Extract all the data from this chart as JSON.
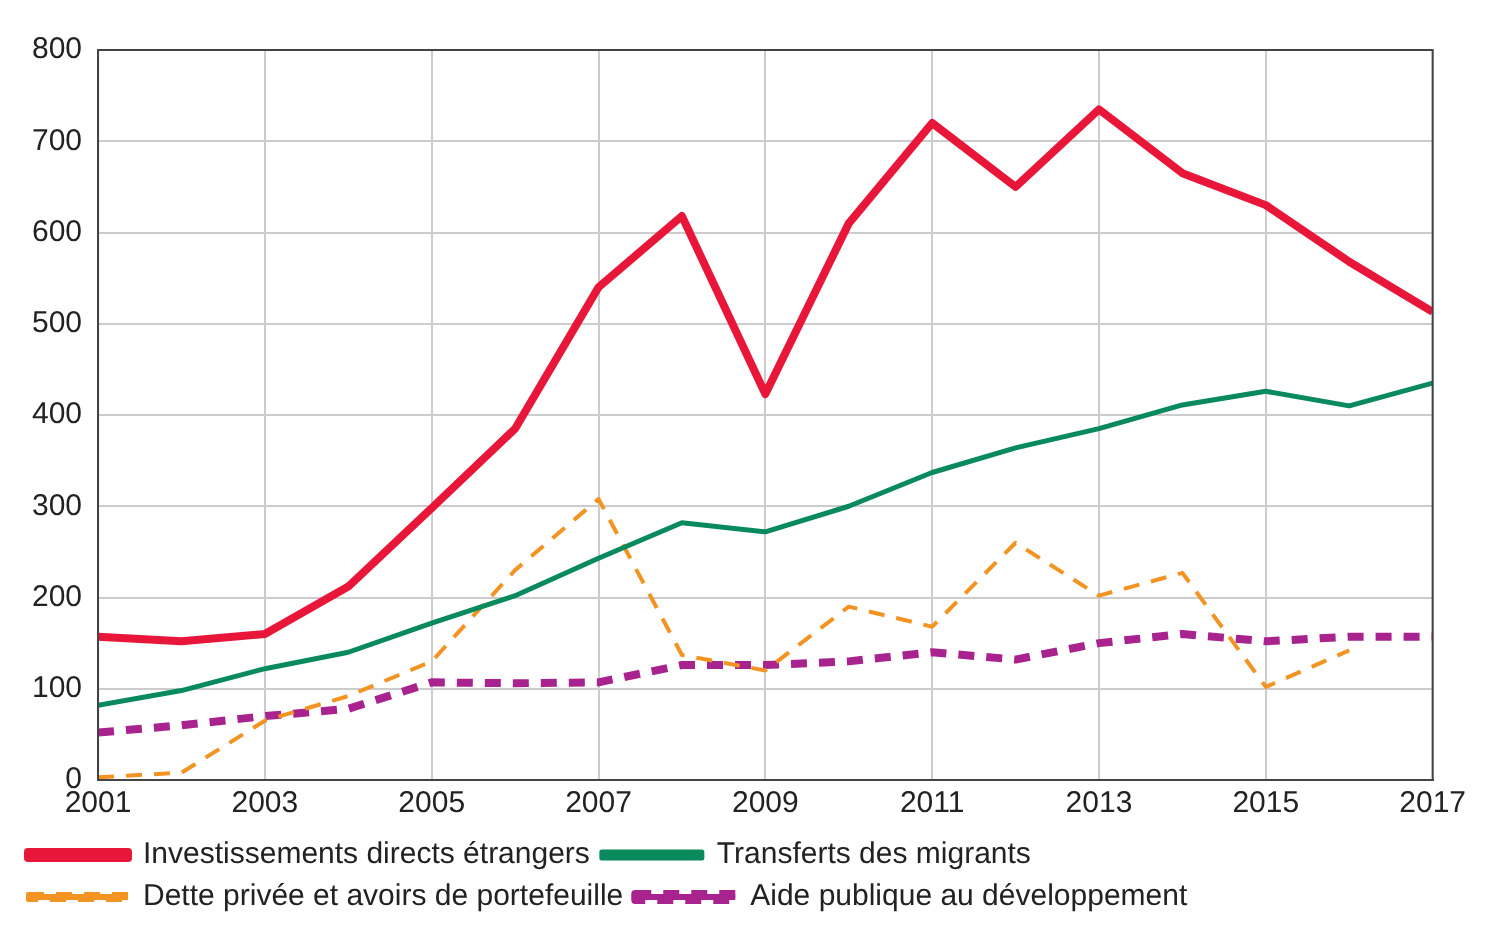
{
  "chart_data": {
    "type": "line",
    "x": [
      2001,
      2002,
      2003,
      2004,
      2005,
      2006,
      2007,
      2008,
      2009,
      2010,
      2011,
      2012,
      2013,
      2014,
      2015,
      2016,
      2017
    ],
    "series": [
      {
        "name": "Investissements directs étrangers",
        "color": "#e8173a",
        "line_style": "solid",
        "values": [
          157,
          152,
          160,
          212,
          298,
          385,
          540,
          618,
          423,
          610,
          720,
          650,
          735,
          665,
          630,
          568,
          513
        ]
      },
      {
        "name": "Transferts des migrants",
        "color": "#088a5c",
        "line_style": "solid",
        "values": [
          82,
          98,
          122,
          140,
          172,
          202,
          243,
          282,
          272,
          300,
          337,
          364,
          385,
          411,
          426,
          410,
          435
        ]
      },
      {
        "name": "Dette privée et avoirs de portefeuille",
        "color": "#f39322",
        "line_style": "dashed",
        "values": [
          3,
          8,
          65,
          92,
          130,
          230,
          308,
          137,
          120,
          190,
          168,
          260,
          202,
          227,
          102,
          142,
          null
        ]
      },
      {
        "name": "Aide publique au développement",
        "color": "#a8238e",
        "line_style": "dashed",
        "values": [
          52,
          60,
          70,
          78,
          107,
          106,
          107,
          126,
          126,
          130,
          140,
          132,
          150,
          160,
          152,
          157,
          157
        ]
      }
    ],
    "xlim": [
      2001,
      2017
    ],
    "xticks": [
      2001,
      2003,
      2005,
      2007,
      2009,
      2011,
      2013,
      2015,
      2017
    ],
    "ylim": [
      0,
      800
    ],
    "yticks": [
      0,
      100,
      200,
      300,
      400,
      500,
      600,
      700,
      800
    ],
    "grid": true,
    "legend": "bottom",
    "marker": "none"
  }
}
